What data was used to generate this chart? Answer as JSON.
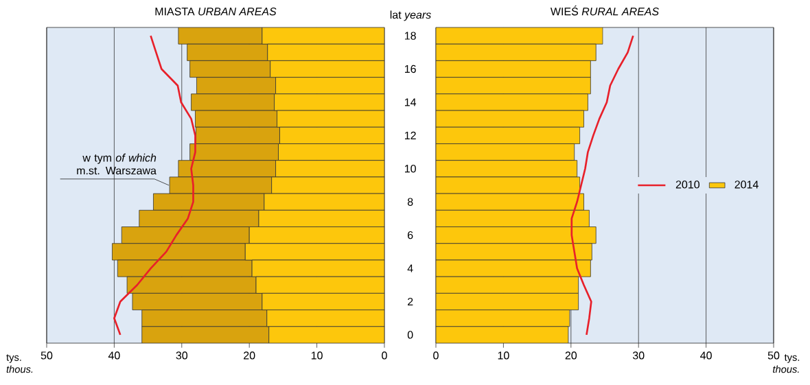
{
  "chart_data": [
    {
      "type": "bar",
      "orientation": "horizontal",
      "stacked": true,
      "title": "MIASTA *URBAN AREAS*",
      "xlabel": "tys. *thous.*",
      "categories": [
        "18",
        null,
        "16",
        null,
        "14",
        null,
        "12",
        null,
        "10",
        null,
        "8",
        null,
        "6",
        null,
        "4",
        null,
        "2",
        null,
        "0"
      ],
      "xlim": [
        50,
        0
      ],
      "xticks": [
        50,
        40,
        30,
        20,
        10,
        0
      ],
      "grid": "x",
      "tick_labels": "x",
      "legend": "left",
      "series": [
        {
          "color": "#fdc70c",
          "values": [
            18.1,
            17.3,
            16.9,
            16.1,
            16.3,
            15.9,
            15.5,
            15.7,
            16.1,
            16.7,
            17.8,
            18.6,
            20.0,
            20.6,
            19.6,
            19.0,
            18.1,
            17.4,
            17.1
          ]
        },
        {
          "name": "w tym *of which* m.st. Warszawa",
          "color": "#d9a30e",
          "values": [
            12.4,
            11.9,
            11.9,
            11.7,
            12.3,
            12.1,
            12.4,
            13.1,
            14.4,
            15.1,
            16.4,
            17.7,
            18.9,
            19.7,
            19.9,
            19.1,
            19.2,
            18.5,
            18.8
          ]
        },
        {
          "type": "line",
          "color": "#e8202a",
          "values": [
            34.6,
            33.8,
            33.0,
            30.6,
            30.1,
            28.6,
            28.0,
            28.0,
            28.6,
            28.3,
            28.3,
            29.1,
            30.8,
            32.3,
            34.6,
            36.6,
            39.1,
            40.0,
            39.1
          ]
        }
      ]
    },
    {
      "type": "bar",
      "orientation": "horizontal",
      "title": "WIEŚ *RURAL AREAS*",
      "ylabel": "lat *years*",
      "xlabel": "tys. *thous.*",
      "categories": [
        "18",
        null,
        "16",
        null,
        "14",
        null,
        "12",
        null,
        "10",
        null,
        "8",
        null,
        "6",
        null,
        "4",
        null,
        "2",
        null,
        "0"
      ],
      "xlim": [
        0,
        50
      ],
      "xticks": [
        0,
        10,
        20,
        30,
        40,
        50
      ],
      "grid": "x",
      "legend": "right",
      "series": [
        {
          "name": "2014",
          "color": "#fdc70c",
          "values": [
            24.7,
            23.7,
            22.9,
            22.9,
            22.5,
            21.9,
            21.3,
            20.5,
            20.9,
            21.3,
            21.9,
            22.7,
            23.7,
            23.1,
            22.9,
            21.1,
            21.1,
            19.8,
            19.6
          ]
        },
        {
          "name": "2010",
          "type": "line",
          "color": "#e8202a",
          "values": [
            29.2,
            28.4,
            27.0,
            25.8,
            25.3,
            24.2,
            23.3,
            22.5,
            22.1,
            21.5,
            20.9,
            20.1,
            20.1,
            20.5,
            20.9,
            21.9,
            23.0,
            22.7,
            22.3
          ]
        }
      ]
    }
  ]
}
